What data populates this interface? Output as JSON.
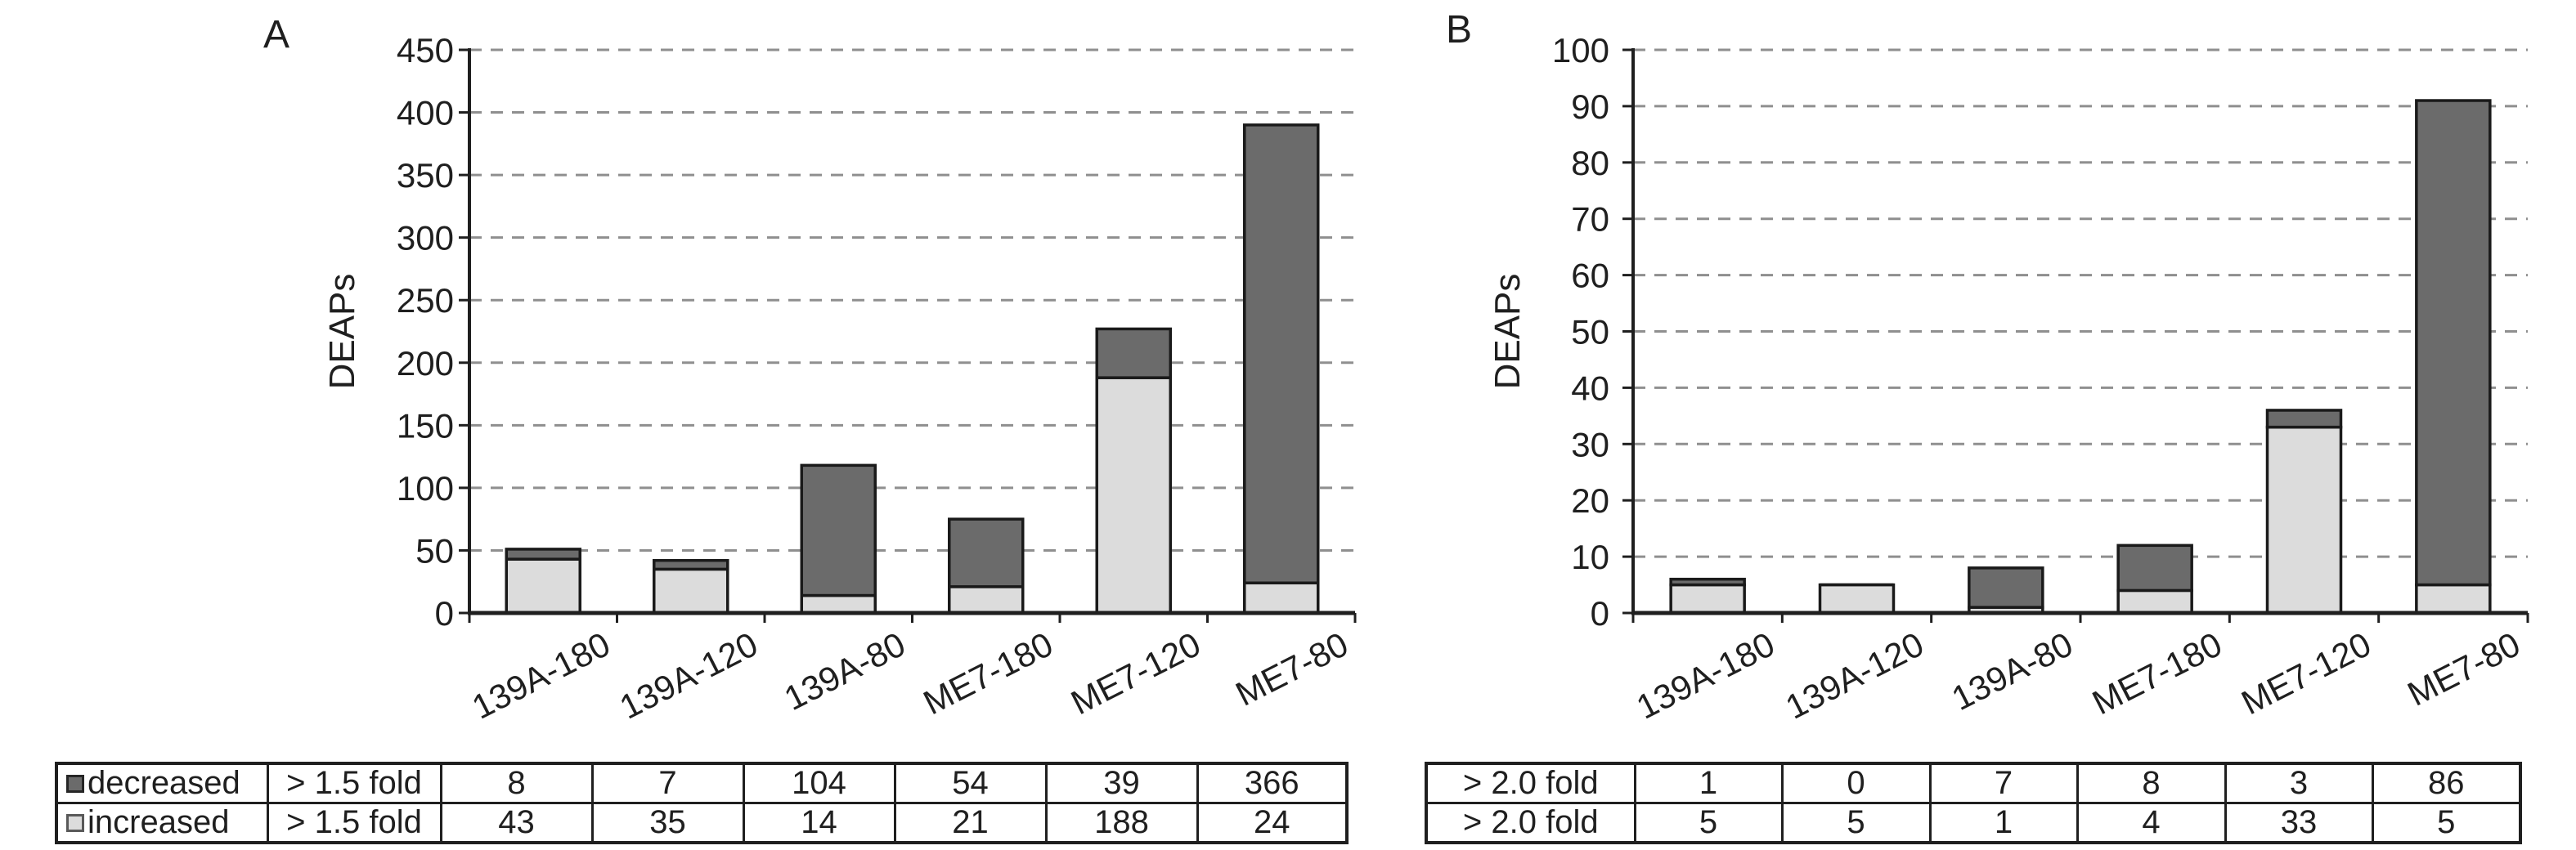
{
  "figure": {
    "background": "#ffffff",
    "text_color": "#1f1f1f",
    "grid_color": "#8f8f8f",
    "bar_outline_color": "#1a1a1a",
    "decreased_color": "#6b6b6b",
    "increased_color": "#dcdcdc"
  },
  "chart_data": [
    {
      "type": "bar",
      "stacked": true,
      "panel_label": "A",
      "ylabel": "DEAPs",
      "categories": [
        "139A-180",
        "139A-120",
        "139A-80",
        "ME7-180",
        "ME7-120",
        "ME7-80"
      ],
      "series": [
        {
          "name": "increased",
          "fold": "> 1.5 fold",
          "color": "#dcdcdc",
          "swatch": "light",
          "values": [
            43,
            35,
            14,
            21,
            188,
            24
          ]
        },
        {
          "name": "decreased",
          "fold": "> 1.5 fold",
          "color": "#6b6b6b",
          "swatch": "dark",
          "values": [
            8,
            7,
            104,
            54,
            39,
            366
          ]
        }
      ],
      "ylim": [
        0,
        450
      ],
      "ytick_step": 50,
      "grid": "dashed-horizontal",
      "legend_position": "table-below",
      "table": {
        "show_legend_column": true,
        "rows": [
          {
            "legend": "decreased",
            "swatch": "dark",
            "fold": "> 1.5 fold",
            "values": [
              8,
              7,
              104,
              54,
              39,
              366
            ]
          },
          {
            "legend": "increased",
            "swatch": "light",
            "fold": "> 1.5 fold",
            "values": [
              43,
              35,
              14,
              21,
              188,
              24
            ]
          }
        ]
      }
    },
    {
      "type": "bar",
      "stacked": true,
      "panel_label": "B",
      "ylabel": "DEAPs",
      "categories": [
        "139A-180",
        "139A-120",
        "139A-80",
        "ME7-180",
        "ME7-120",
        "ME7-80"
      ],
      "series": [
        {
          "name": "increased",
          "fold": "> 2.0 fold",
          "color": "#dcdcdc",
          "swatch": "light",
          "values": [
            5,
            5,
            1,
            4,
            33,
            5
          ]
        },
        {
          "name": "decreased",
          "fold": "> 2.0 fold",
          "color": "#6b6b6b",
          "swatch": "dark",
          "values": [
            1,
            0,
            7,
            8,
            3,
            86
          ]
        }
      ],
      "ylim": [
        0,
        100
      ],
      "ytick_step": 10,
      "grid": "dashed-horizontal",
      "legend_position": "table-below",
      "table": {
        "show_legend_column": false,
        "rows": [
          {
            "fold": "> 2.0 fold",
            "values": [
              1,
              0,
              7,
              8,
              3,
              86
            ]
          },
          {
            "fold": "> 2.0 fold",
            "values": [
              5,
              5,
              1,
              4,
              33,
              5
            ]
          }
        ]
      }
    }
  ]
}
